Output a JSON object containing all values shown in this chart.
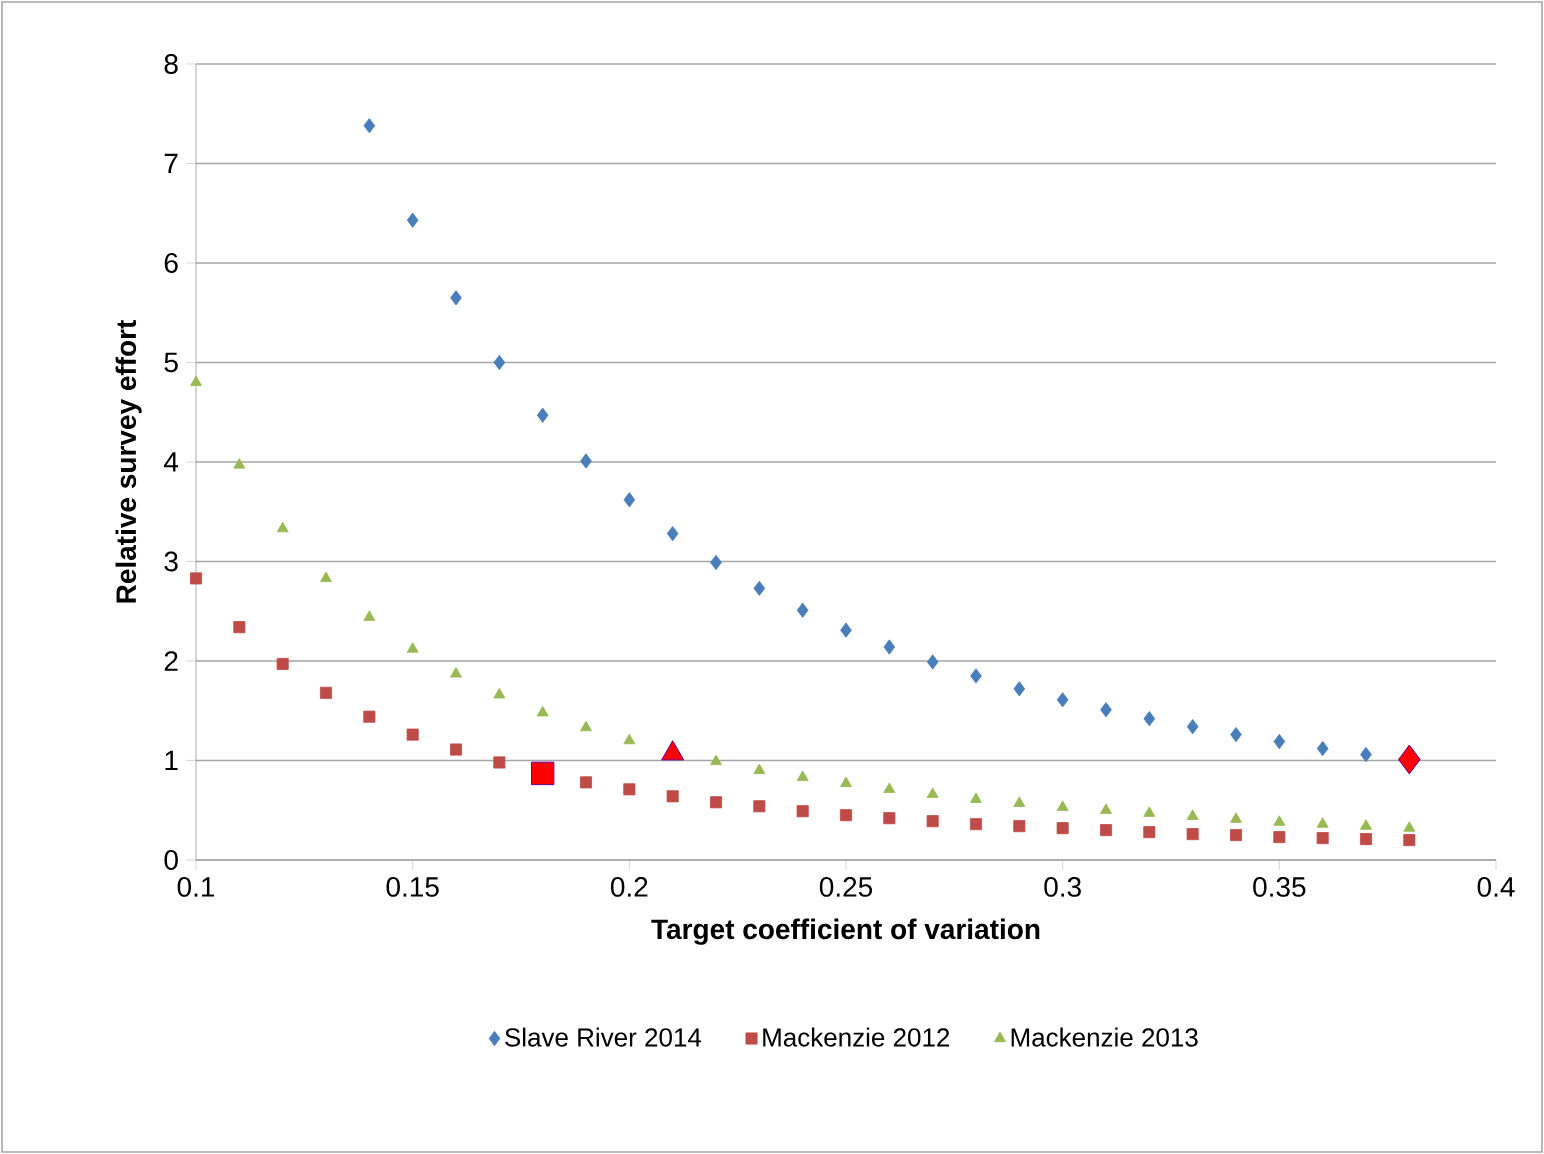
{
  "chart_data": {
    "type": "scatter",
    "xlabel": "Target coefficient of variation",
    "ylabel": "Relative survey effort",
    "xlim": [
      0.1,
      0.4
    ],
    "xticks": [
      0.1,
      0.15,
      0.2,
      0.25,
      0.3,
      0.35,
      0.4
    ],
    "ylim": [
      0,
      8
    ],
    "yticks": [
      0,
      1,
      2,
      3,
      4,
      5,
      6,
      7,
      8
    ],
    "grid": "y",
    "legend": "bottom",
    "series": [
      {
        "name": "Slave River 2014",
        "color": "#4a7ebb",
        "marker": "diamond",
        "x": [
          0.14,
          0.15,
          0.16,
          0.17,
          0.18,
          0.19,
          0.2,
          0.21,
          0.22,
          0.23,
          0.24,
          0.25,
          0.26,
          0.27,
          0.28,
          0.29,
          0.3,
          0.31,
          0.32,
          0.33,
          0.34,
          0.35,
          0.36,
          0.37
        ],
        "values": [
          7.38,
          6.43,
          5.65,
          5.0,
          4.47,
          4.01,
          3.62,
          3.28,
          2.99,
          2.73,
          2.51,
          2.31,
          2.14,
          1.99,
          1.85,
          1.72,
          1.61,
          1.51,
          1.42,
          1.34,
          1.26,
          1.19,
          1.12,
          1.06
        ]
      },
      {
        "name": "Mackenzie 2012",
        "color": "#be4b48",
        "marker": "square",
        "x": [
          0.1,
          0.11,
          0.12,
          0.13,
          0.14,
          0.15,
          0.16,
          0.17,
          0.18,
          0.19,
          0.2,
          0.21,
          0.22,
          0.23,
          0.24,
          0.25,
          0.26,
          0.27,
          0.28,
          0.29,
          0.3,
          0.31,
          0.32,
          0.33,
          0.34,
          0.35,
          0.36,
          0.37,
          0.38
        ],
        "values": [
          2.83,
          2.34,
          1.97,
          1.68,
          1.44,
          1.26,
          1.11,
          0.98,
          null,
          0.78,
          0.71,
          0.64,
          0.58,
          0.54,
          0.49,
          0.45,
          0.42,
          0.39,
          0.36,
          0.34,
          0.32,
          0.3,
          0.28,
          0.26,
          0.25,
          0.23,
          0.22,
          0.21,
          0.2
        ]
      },
      {
        "name": "Mackenzie 2013",
        "color": "#98b954",
        "marker": "triangle",
        "x": [
          0.1,
          0.11,
          0.12,
          0.13,
          0.14,
          0.15,
          0.16,
          0.17,
          0.18,
          0.19,
          0.2,
          0.21,
          0.22,
          0.23,
          0.24,
          0.25,
          0.26,
          0.27,
          0.28,
          0.29,
          0.3,
          0.31,
          0.32,
          0.33,
          0.34,
          0.35,
          0.36,
          0.37,
          0.38
        ],
        "values": [
          4.8,
          3.97,
          3.33,
          2.83,
          2.44,
          2.12,
          1.87,
          1.66,
          1.48,
          1.33,
          1.2,
          null,
          0.99,
          0.9,
          0.83,
          0.77,
          0.71,
          0.66,
          0.61,
          0.57,
          0.53,
          0.5,
          0.47,
          0.44,
          0.41,
          0.38,
          0.36,
          0.34,
          0.32
        ]
      },
      {
        "color": "#ff0000",
        "marker": "diamond",
        "x": [
          0.38
        ],
        "values": [
          1.01
        ]
      },
      {
        "color": "#ff0000",
        "marker": "square",
        "x": [
          0.18
        ],
        "values": [
          0.87
        ]
      },
      {
        "color": "#ff0000",
        "marker": "triangle",
        "x": [
          0.21
        ],
        "values": [
          1.07
        ]
      }
    ]
  }
}
